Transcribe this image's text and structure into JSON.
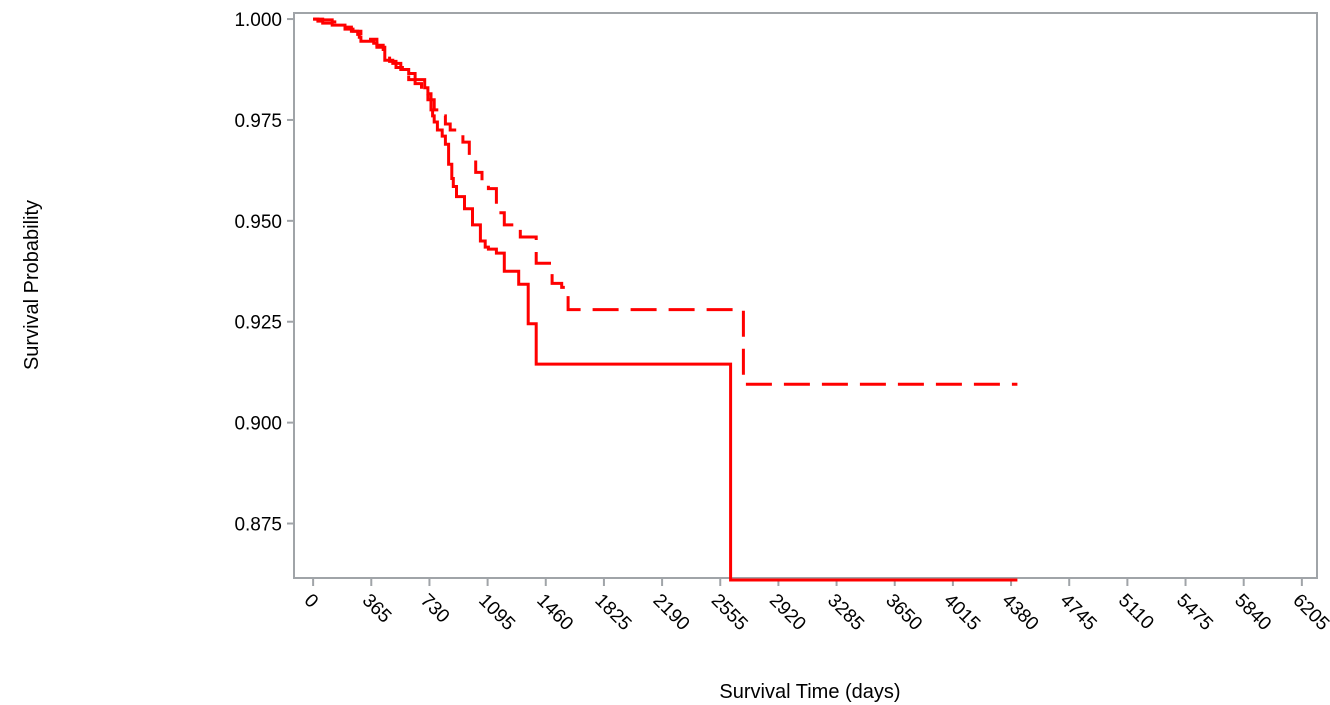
{
  "chart_data": {
    "type": "line",
    "title": "",
    "xlabel": "Survival Time (days)",
    "ylabel": "Survival Probability",
    "xlim": [
      -120,
      6300
    ],
    "ylim": [
      0.8615,
      1.0015
    ],
    "x_ticks": [
      0,
      365,
      730,
      1095,
      1460,
      1825,
      2190,
      2555,
      2920,
      3285,
      3650,
      4015,
      4380,
      4745,
      5110,
      5475,
      5840,
      6205
    ],
    "y_ticks": [
      {
        "value": 0.875,
        "label": "0.875"
      },
      {
        "value": 0.9,
        "label": "0.900"
      },
      {
        "value": 0.925,
        "label": "0.925"
      },
      {
        "value": 0.95,
        "label": "0.950"
      },
      {
        "value": 0.975,
        "label": "0.975"
      },
      {
        "value": 1.0,
        "label": "1.000"
      }
    ],
    "grid": false,
    "legend": "none",
    "line_color": "#ff0000",
    "axis_color": "#a0a4a8",
    "series": [
      {
        "style": "solid",
        "step": true,
        "x": [
          0,
          30,
          60,
          120,
          200,
          250,
          280,
          290,
          300,
          380,
          400,
          450,
          500,
          550,
          600,
          640,
          700,
          720,
          740,
          750,
          760,
          780,
          810,
          830,
          850,
          870,
          880,
          900,
          950,
          1000,
          1050,
          1080,
          1100,
          1150,
          1200,
          1290,
          1350,
          1400,
          1460,
          1580,
          1700,
          2000,
          2300,
          2560,
          2620,
          3000,
          4000,
          4420
        ],
        "y": [
          1.0,
          0.9995,
          0.999,
          0.9985,
          0.9975,
          0.997,
          0.9962,
          0.9955,
          0.9945,
          0.994,
          0.993,
          0.9898,
          0.989,
          0.9875,
          0.9865,
          0.985,
          0.983,
          0.9815,
          0.9775,
          0.976,
          0.9745,
          0.9725,
          0.971,
          0.969,
          0.964,
          0.9605,
          0.9585,
          0.956,
          0.953,
          0.949,
          0.945,
          0.9435,
          0.943,
          0.942,
          0.9375,
          0.9343,
          0.9245,
          0.9145,
          0.9145,
          0.9145,
          0.9145,
          0.9145,
          0.9145,
          0.9145,
          0.861,
          0.861,
          0.861,
          0.861
        ]
      },
      {
        "style": "dashed",
        "step": true,
        "x": [
          0,
          60,
          120,
          200,
          240,
          300,
          340,
          400,
          440,
          480,
          520,
          560,
          600,
          640,
          680,
          720,
          760,
          800,
          830,
          860,
          900,
          940,
          980,
          1020,
          1060,
          1100,
          1150,
          1200,
          1300,
          1400,
          1500,
          1560,
          1600,
          1700,
          1800,
          2000,
          2250,
          2700,
          3000,
          4420
        ],
        "y": [
          1.0,
          0.9998,
          0.9993,
          0.998,
          0.997,
          0.9955,
          0.995,
          0.9935,
          0.991,
          0.9895,
          0.988,
          0.987,
          0.985,
          0.984,
          0.9822,
          0.98,
          0.9775,
          0.976,
          0.974,
          0.9725,
          0.9715,
          0.9695,
          0.966,
          0.962,
          0.96,
          0.958,
          0.952,
          0.949,
          0.946,
          0.9395,
          0.9345,
          0.9335,
          0.928,
          0.928,
          0.928,
          0.928,
          0.928,
          0.9095,
          0.9095,
          0.9095
        ]
      }
    ]
  }
}
